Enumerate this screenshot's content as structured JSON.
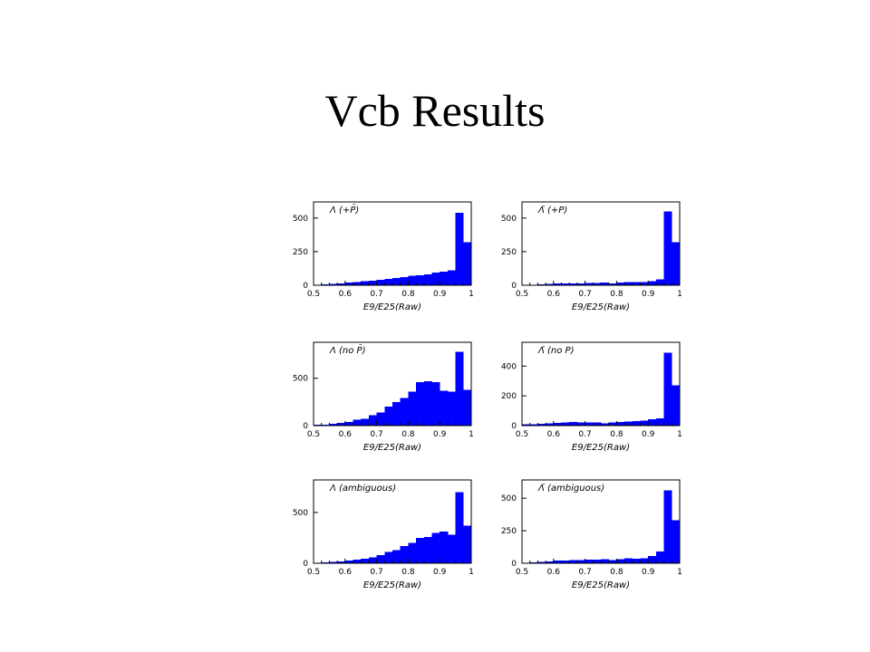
{
  "page": {
    "title": "Vcb Results"
  },
  "colors": {
    "bar_fill": "#0000ff",
    "axis": "#000000",
    "background": "#ffffff"
  },
  "chart_data": [
    {
      "type": "bar",
      "label": "Λ (+P̄)",
      "xlabel": "E9/E25(Raw)",
      "xlim": [
        0.5,
        1.0
      ],
      "ylim": [
        0,
        620
      ],
      "xticks": [
        "0.5",
        "0.6",
        "0.7",
        "0.8",
        "0.9",
        "1"
      ],
      "yticks": [
        0,
        250,
        500
      ],
      "bin_edges": [
        0.5,
        0.525,
        0.55,
        0.575,
        0.6,
        0.625,
        0.65,
        0.675,
        0.7,
        0.725,
        0.75,
        0.775,
        0.8,
        0.825,
        0.85,
        0.875,
        0.9,
        0.925,
        0.95,
        0.975,
        1.0
      ],
      "values": [
        5,
        8,
        10,
        15,
        20,
        25,
        30,
        35,
        40,
        48,
        55,
        62,
        72,
        75,
        80,
        95,
        100,
        110,
        540,
        320
      ]
    },
    {
      "type": "bar",
      "label": "Λ̄ (+P)",
      "xlabel": "E9/E25(Raw)",
      "xlim": [
        0.5,
        1.0
      ],
      "ylim": [
        0,
        620
      ],
      "xticks": [
        "0.5",
        "0.6",
        "0.7",
        "0.8",
        "0.9",
        "1"
      ],
      "yticks": [
        0,
        250,
        500
      ],
      "bin_edges": [
        0.5,
        0.525,
        0.55,
        0.575,
        0.6,
        0.625,
        0.65,
        0.675,
        0.7,
        0.725,
        0.75,
        0.775,
        0.8,
        0.825,
        0.85,
        0.875,
        0.9,
        0.925,
        0.95,
        0.975,
        1.0
      ],
      "values": [
        5,
        5,
        8,
        10,
        12,
        12,
        15,
        15,
        18,
        18,
        20,
        15,
        20,
        25,
        22,
        25,
        30,
        45,
        550,
        320
      ]
    },
    {
      "type": "bar",
      "label": "Λ (no P̄)",
      "xlabel": "E9/E25(Raw)",
      "xlim": [
        0.5,
        1.0
      ],
      "ylim": [
        0,
        880
      ],
      "xticks": [
        "0.5",
        "0.6",
        "0.7",
        "0.8",
        "0.9",
        "1"
      ],
      "yticks": [
        0,
        500
      ],
      "bin_edges": [
        0.5,
        0.525,
        0.55,
        0.575,
        0.6,
        0.625,
        0.65,
        0.675,
        0.7,
        0.725,
        0.75,
        0.775,
        0.8,
        0.825,
        0.85,
        0.875,
        0.9,
        0.925,
        0.95,
        0.975,
        1.0
      ],
      "values": [
        10,
        12,
        20,
        30,
        40,
        60,
        70,
        110,
        140,
        200,
        250,
        290,
        360,
        460,
        470,
        460,
        370,
        360,
        780,
        380
      ]
    },
    {
      "type": "bar",
      "label": "Λ̄ (no P)",
      "xlabel": "E9/E25(Raw)",
      "xlim": [
        0.5,
        1.0
      ],
      "ylim": [
        0,
        560
      ],
      "xticks": [
        "0.5",
        "0.6",
        "0.7",
        "0.8",
        "0.9",
        "1"
      ],
      "yticks": [
        0,
        200,
        400
      ],
      "bin_edges": [
        0.5,
        0.525,
        0.55,
        0.575,
        0.6,
        0.625,
        0.65,
        0.675,
        0.7,
        0.725,
        0.75,
        0.775,
        0.8,
        0.825,
        0.85,
        0.875,
        0.9,
        0.925,
        0.95,
        0.975,
        1.0
      ],
      "values": [
        8,
        10,
        12,
        15,
        18,
        20,
        25,
        22,
        20,
        22,
        15,
        20,
        25,
        28,
        30,
        35,
        42,
        50,
        490,
        270
      ]
    },
    {
      "type": "bar",
      "label": "Λ (ambiguous)",
      "xlabel": "E9/E25(Raw)",
      "xlim": [
        0.5,
        1.0
      ],
      "ylim": [
        0,
        820
      ],
      "xticks": [
        "0.5",
        "0.6",
        "0.7",
        "0.8",
        "0.9",
        "1"
      ],
      "yticks": [
        0,
        500
      ],
      "bin_edges": [
        0.5,
        0.525,
        0.55,
        0.575,
        0.6,
        0.625,
        0.65,
        0.675,
        0.7,
        0.725,
        0.75,
        0.775,
        0.8,
        0.825,
        0.85,
        0.875,
        0.9,
        0.925,
        0.95,
        0.975,
        1.0
      ],
      "values": [
        5,
        8,
        12,
        20,
        25,
        35,
        45,
        60,
        80,
        110,
        130,
        170,
        200,
        250,
        260,
        300,
        310,
        280,
        700,
        370
      ]
    },
    {
      "type": "bar",
      "label": "Λ̄ (ambiguous)",
      "xlabel": "E9/E25(Raw)",
      "xlim": [
        0.5,
        1.0
      ],
      "ylim": [
        0,
        640
      ],
      "xticks": [
        "0.5",
        "0.6",
        "0.7",
        "0.8",
        "0.9",
        "1"
      ],
      "yticks": [
        0,
        250,
        500
      ],
      "bin_edges": [
        0.5,
        0.525,
        0.55,
        0.575,
        0.6,
        0.625,
        0.65,
        0.675,
        0.7,
        0.725,
        0.75,
        0.775,
        0.8,
        0.825,
        0.85,
        0.875,
        0.9,
        0.925,
        0.95,
        0.975,
        1.0
      ],
      "values": [
        5,
        6,
        10,
        15,
        20,
        22,
        25,
        25,
        28,
        28,
        30,
        25,
        30,
        40,
        35,
        40,
        55,
        90,
        560,
        330
      ]
    }
  ]
}
